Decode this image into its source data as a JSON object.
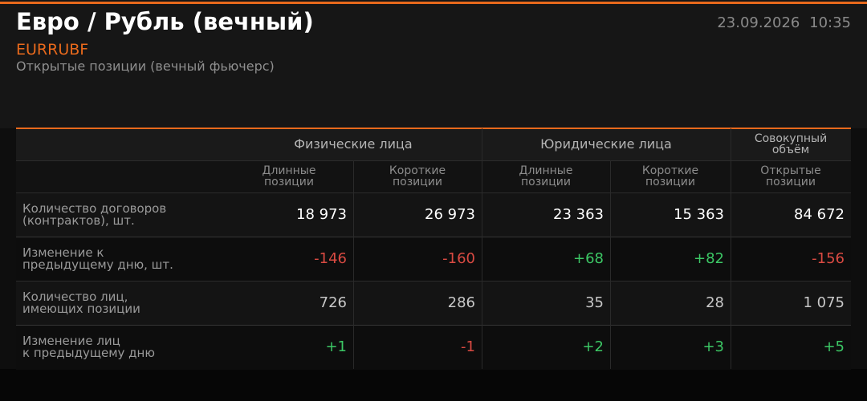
{
  "header": {
    "title": "Евро / Рубль (вечный)",
    "ticker": "EURRUBF",
    "subtitle": "Открытые позиции (вечный фьючерс)",
    "date": "23.09.2026",
    "time": "10:35"
  },
  "table": {
    "groups": [
      "Физические лица",
      "Юридические лица",
      "Совокупный\nобъём"
    ],
    "columns": [
      "Длинные\nпозиции",
      "Короткие\nпозиции",
      "Длинные\nпозиции",
      "Короткие\nпозиции",
      "Открытые\nпозиции"
    ],
    "rows": [
      {
        "label": "Количество договоров\n(контрактов), шт.",
        "cells": [
          "18 973",
          "26 973",
          "23 363",
          "15 363",
          "84 672"
        ]
      },
      {
        "label": "Изменение к\nпредыдущему дню, шт.",
        "cells": [
          "-146",
          "-160",
          "+68",
          "+82",
          "-156"
        ]
      },
      {
        "label": "Количество лиц,\nимеющих позиции",
        "cells": [
          "726",
          "286",
          "35",
          "28",
          "1 075"
        ]
      },
      {
        "label": "Изменение лиц\nк предыдущему дню",
        "cells": [
          "+1",
          "-1",
          "+2",
          "+3",
          "+5"
        ]
      }
    ]
  }
}
